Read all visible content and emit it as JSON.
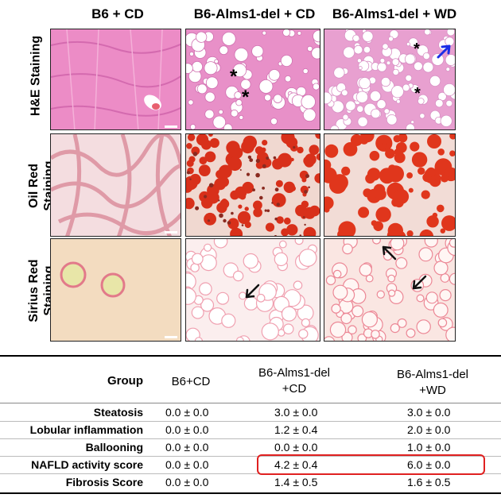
{
  "figure": {
    "columns": [
      "B6 + CD",
      "B6-Alms1-del + CD",
      "B6-Alms1-del + WD"
    ],
    "rows": [
      {
        "line1": "H&E Staining",
        "line2": ""
      },
      {
        "line1": "Oil Red",
        "line2": "Staining"
      },
      {
        "line1": "Sirius Red",
        "line2": "Staining"
      }
    ],
    "markers": {
      "asterisk": "*"
    },
    "colors": {
      "he": "#e88fc8",
      "oilred": "#d8301a",
      "sirius": "#e86880",
      "arrow_blue": "#1a2ee6",
      "highlight": "#e02020"
    }
  },
  "table": {
    "header": {
      "group": "Group",
      "col1": "B6+CD",
      "col2a": "B6-Alms1-del",
      "col2b": "+CD",
      "col3a": "B6-Alms1-del",
      "col3b": "+WD"
    },
    "rows": [
      {
        "label": "Steatosis",
        "v1": "0.0 ± 0.0",
        "v2": "3.0 ± 0.0",
        "v3": "3.0 ± 0.0"
      },
      {
        "label": "Lobular inflammation",
        "v1": "0.0 ± 0.0",
        "v2": "1.2 ± 0.4",
        "v3": "2.0 ± 0.0"
      },
      {
        "label": "Ballooning",
        "v1": "0.0 ± 0.0",
        "v2": "0.0 ± 0.0",
        "v3": "1.0 ± 0.0"
      },
      {
        "label": "NAFLD activity score",
        "v1": "0.0 ± 0.0",
        "v2": "4.2 ± 0.4",
        "v3": "6.0 ± 0.0"
      },
      {
        "label": "Fibrosis Score",
        "v1": "0.0 ± 0.0",
        "v2": "1.4 ± 0.5",
        "v3": "1.6 ± 0.5"
      }
    ]
  }
}
